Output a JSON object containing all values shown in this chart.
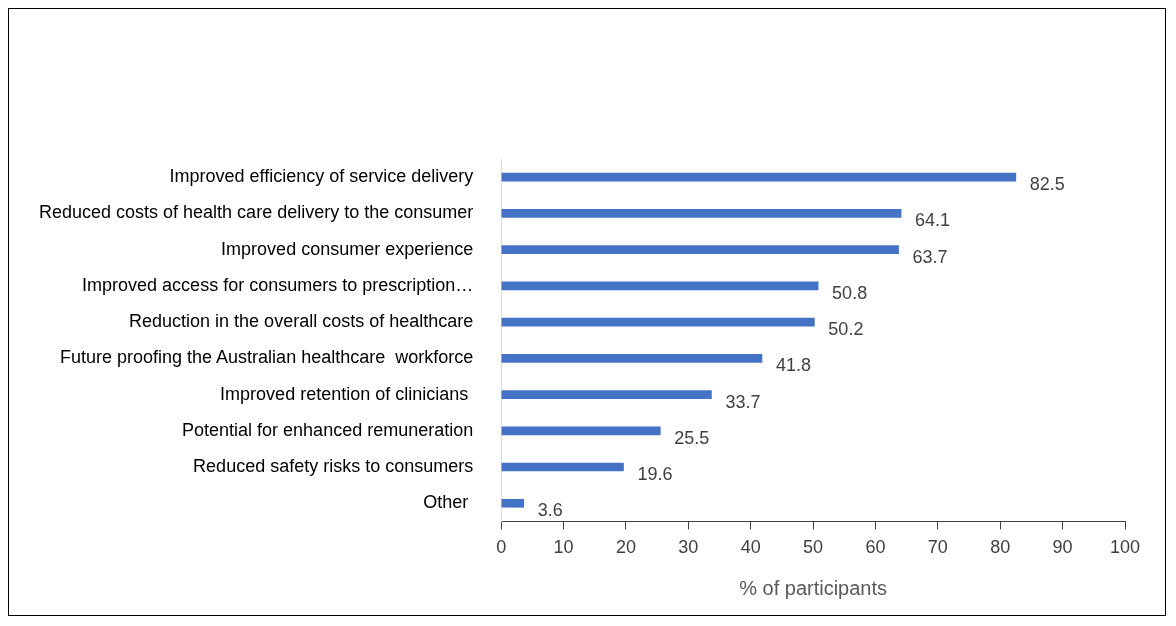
{
  "chart_data": {
    "type": "bar",
    "orientation": "horizontal",
    "xlabel": "% of participants",
    "categories": [
      "Improved efficiency of service delivery",
      "Reduced costs of health care delivery to the consumer",
      "Improved consumer experience",
      "Improved access for consumers to prescription…",
      "Reduction in the overall costs of healthcare",
      "Future proofing the Australian healthcare  workforce",
      "Improved retention of clinicians ",
      "Potential for enhanced remuneration",
      "Reduced safety risks to consumers",
      "Other "
    ],
    "values": [
      82.5,
      64.1,
      63.7,
      50.8,
      50.2,
      41.8,
      33.7,
      25.5,
      19.6,
      3.6
    ],
    "color": "#4472c4",
    "xlim": [
      0,
      100
    ],
    "xticks": [
      0,
      10,
      20,
      30,
      40,
      50,
      60,
      70,
      80,
      90,
      100
    ],
    "grid": false,
    "legend": false,
    "data_labels": true
  }
}
